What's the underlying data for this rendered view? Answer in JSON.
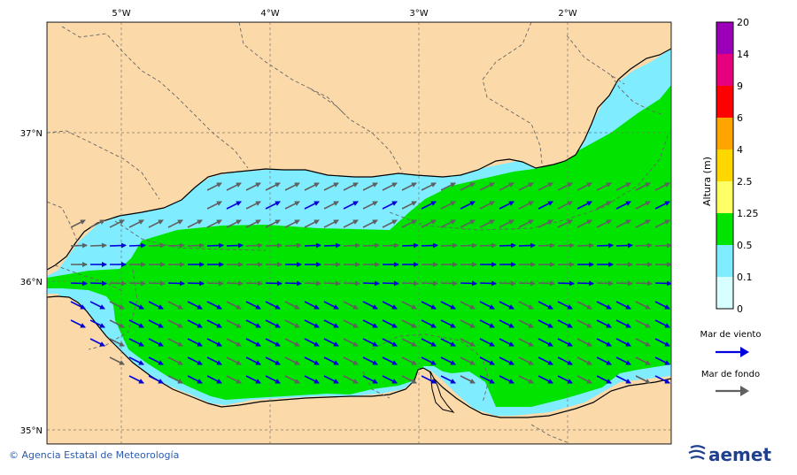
{
  "map": {
    "lon_labels": [
      "5°W",
      "4°W",
      "3°W",
      "2°W"
    ],
    "lat_labels": [
      "37°N",
      "36°N",
      "35°N"
    ]
  },
  "legend": {
    "title": "Altura (m)",
    "levels": [
      "20",
      "14",
      "9",
      "6",
      "4",
      "2.5",
      "1.25",
      "0.5",
      "0.1",
      "0"
    ],
    "colors": [
      "#9b00b8",
      "#e6007e",
      "#ff0000",
      "#ffa500",
      "#ffd700",
      "#ffff66",
      "#00e400",
      "#80ecff",
      "#d8ffff"
    ],
    "wind_label": "Mar de viento",
    "wind_color": "#0000dd",
    "swell_label": "Mar de fondo",
    "swell_color": "#606060"
  },
  "colors": {
    "land": "#fbd9a8",
    "sea_low": "#80ecff",
    "sea_mid": "#00e400",
    "sea_edge": "#d8ffff"
  },
  "footer": {
    "credit": "© Agencia Estatal de Meteorología",
    "logo": "aemet"
  }
}
